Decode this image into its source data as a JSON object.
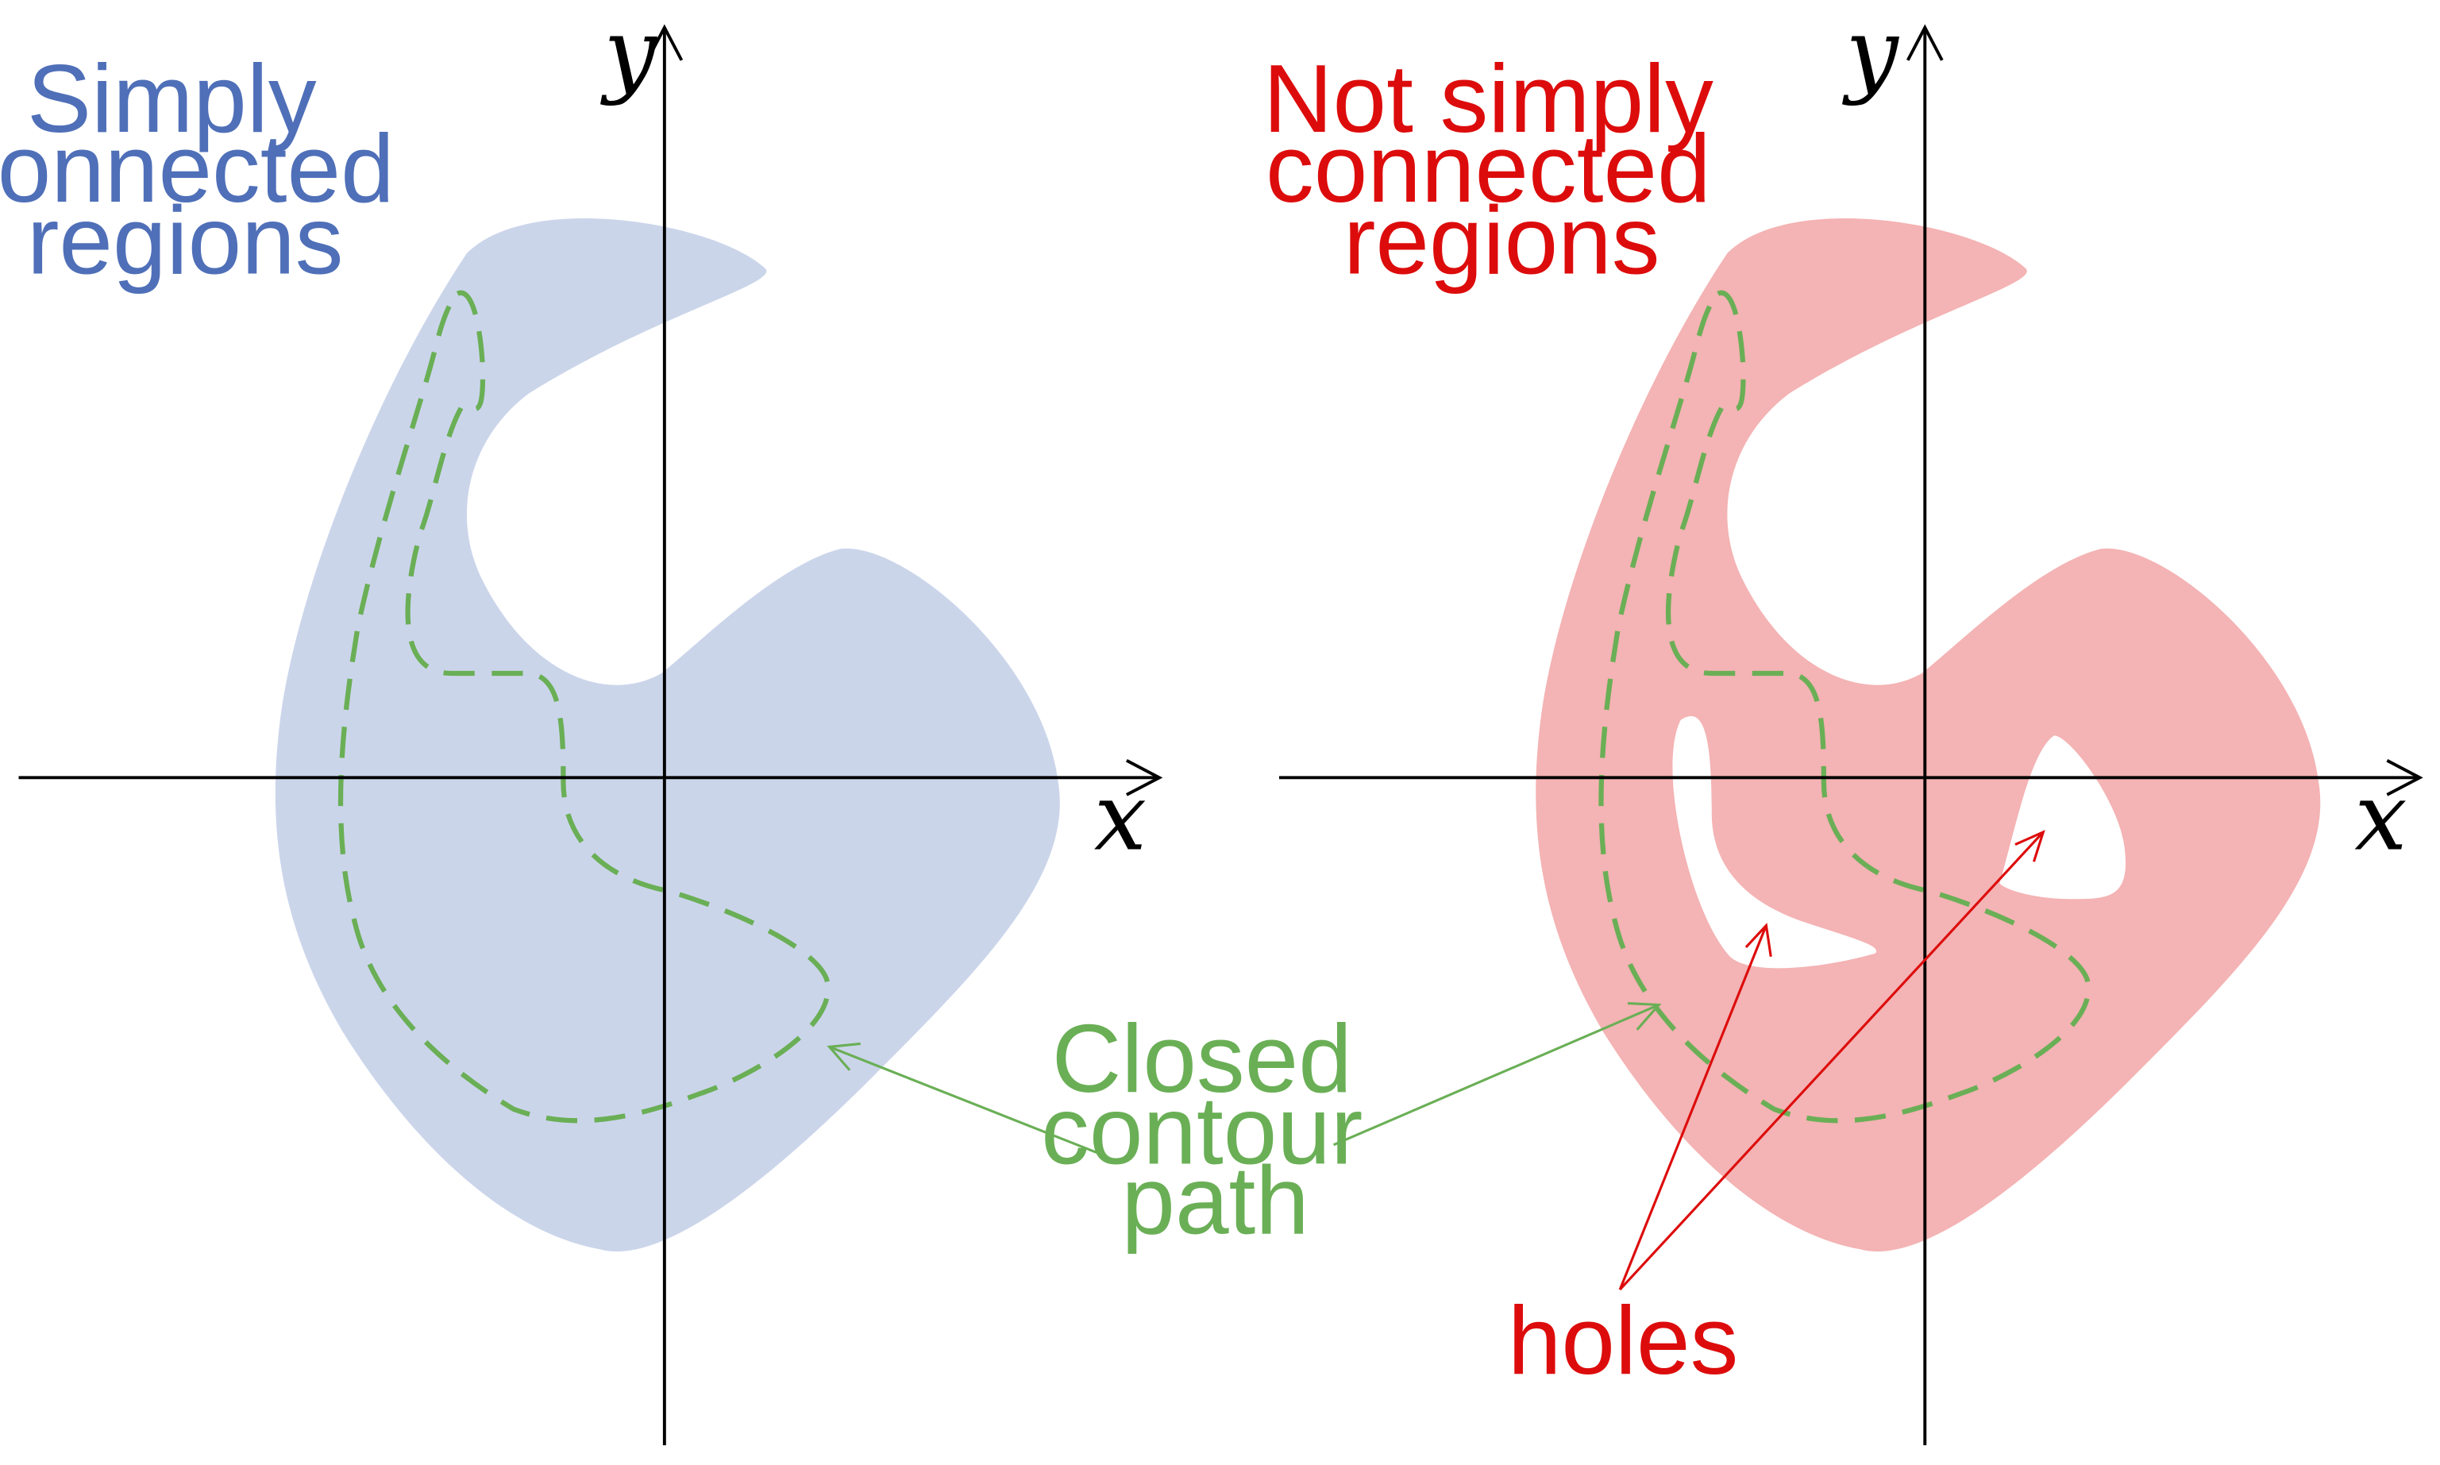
{
  "colors": {
    "simply_region_fill": "#cbd5ea",
    "simply_title": "#4f6fb8",
    "not_simply_region_fill": "#f4b3b4",
    "not_simply_title": "#dd0c0c",
    "contour_path": "#6aaf56",
    "holes_annotation": "#dd0c0c",
    "axes": "#000000"
  },
  "left_panel": {
    "title_lines": [
      "Simply",
      "connected",
      "regions"
    ],
    "x_axis_label": "x",
    "y_axis_label": "y"
  },
  "right_panel": {
    "title_lines": [
      "Not simply",
      "connected",
      "regions"
    ],
    "x_axis_label": "x",
    "y_axis_label": "y",
    "holes_label": "holes"
  },
  "contour_annotation": {
    "lines": [
      "Closed",
      "contour",
      "path"
    ]
  },
  "icons": [
    "arrow-head-icon"
  ]
}
